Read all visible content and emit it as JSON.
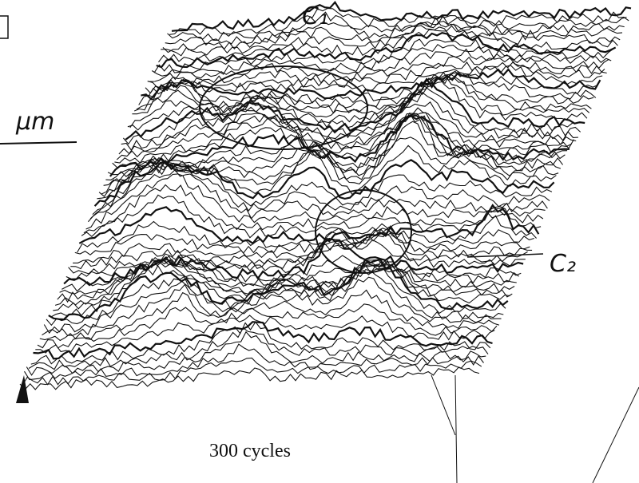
{
  "labels": {
    "c1": "C₁",
    "c2": "C₂",
    "unit": "μm",
    "caption": "300 cycles"
  }
}
